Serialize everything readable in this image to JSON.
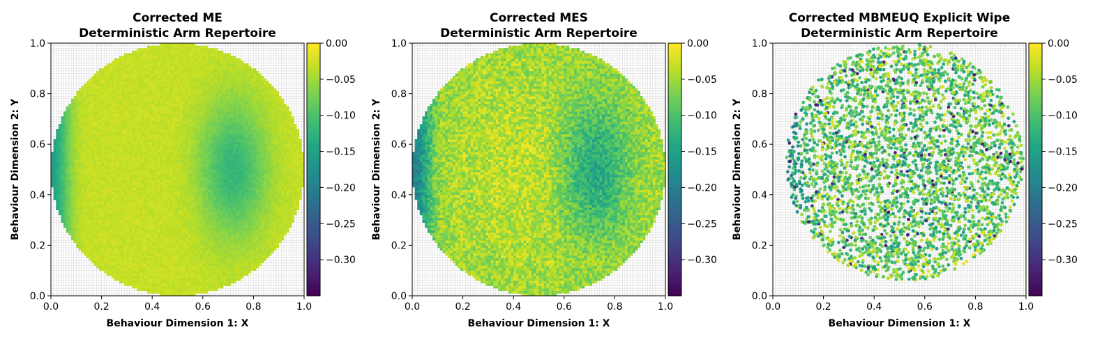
{
  "colormap": "viridis",
  "chart_data": [
    {
      "type": "heatmap",
      "title": "Corrected ME\nDeterministic Arm Repertoire",
      "xlabel": "Behaviour Dimension 1: X",
      "ylabel": "Behaviour Dimension 2: Y",
      "xlim": [
        0.0,
        1.0
      ],
      "ylim": [
        0.0,
        1.0
      ],
      "xticks": [
        "0.0",
        "0.2",
        "0.4",
        "0.6",
        "0.8",
        "1.0"
      ],
      "yticks": [
        "0.0",
        "0.2",
        "0.4",
        "0.6",
        "0.8",
        "1.0"
      ],
      "grid": true,
      "grid_cells": 100,
      "region": "disk",
      "center": [
        0.5,
        0.5
      ],
      "radius": 0.5,
      "fill": "dense grid cells",
      "value_range": [
        -0.35,
        0.0
      ],
      "colorbar_ticks": [
        "0.00",
        "−0.05",
        "−0.10",
        "−0.15",
        "−0.20",
        "−0.25",
        "−0.30"
      ],
      "colorbar_tick_values": [
        0.0,
        -0.05,
        -0.1,
        -0.15,
        -0.2,
        -0.25,
        -0.3
      ],
      "colorbar_range": [
        -0.35,
        0.0
      ],
      "typical_values": {
        "center": -0.03,
        "outer_ring": -0.03,
        "mid_right_band": -0.12,
        "left_edge": -0.15
      }
    },
    {
      "type": "heatmap",
      "title": "Corrected MES\nDeterministic Arm Repertoire",
      "xlabel": "Behaviour Dimension 1: X",
      "ylabel": "Behaviour Dimension 2: Y",
      "xlim": [
        0.0,
        1.0
      ],
      "ylim": [
        0.0,
        1.0
      ],
      "xticks": [
        "0.0",
        "0.2",
        "0.4",
        "0.6",
        "0.8",
        "1.0"
      ],
      "yticks": [
        "0.0",
        "0.2",
        "0.4",
        "0.6",
        "0.8",
        "1.0"
      ],
      "grid": true,
      "grid_cells": 100,
      "region": "disk",
      "center": [
        0.5,
        0.5
      ],
      "radius": 0.5,
      "fill": "dense grid cells",
      "value_range": [
        -0.35,
        0.0
      ],
      "colorbar_ticks": [
        "0.00",
        "−0.05",
        "−0.10",
        "−0.15",
        "−0.20",
        "−0.25",
        "−0.30"
      ],
      "colorbar_tick_values": [
        0.0,
        -0.05,
        -0.1,
        -0.15,
        -0.2,
        -0.25,
        -0.3
      ],
      "colorbar_range": [
        -0.35,
        0.0
      ],
      "typical_values": {
        "center": -0.03,
        "outer_ring": -0.05,
        "mid_right_band": -0.13,
        "left_edge": -0.2
      }
    },
    {
      "type": "heatmap",
      "title": "Corrected MBMEUQ Explicit Wipe\nDeterministic Arm Repertoire",
      "xlabel": "Behaviour Dimension 1: X",
      "ylabel": "Behaviour Dimension 2: Y",
      "xlim": [
        0.0,
        1.0
      ],
      "ylim": [
        0.0,
        1.0
      ],
      "xticks": [
        "0.0",
        "0.2",
        "0.4",
        "0.6",
        "0.8",
        "1.0"
      ],
      "yticks": [
        "0.0",
        "0.2",
        "0.4",
        "0.6",
        "0.8",
        "1.0"
      ],
      "grid": true,
      "grid_cells": 100,
      "region": "disk",
      "center": [
        0.52,
        0.53
      ],
      "radius": 0.47,
      "fill": "scattered points",
      "value_range": [
        -0.35,
        0.0
      ],
      "colorbar_ticks": [
        "0.00",
        "−0.05",
        "−0.10",
        "−0.15",
        "−0.20",
        "−0.25",
        "−0.30"
      ],
      "colorbar_tick_values": [
        0.0,
        -0.05,
        -0.1,
        -0.15,
        -0.2,
        -0.25,
        -0.3
      ],
      "colorbar_range": [
        -0.35,
        0.0
      ],
      "typical_values": {
        "center": -0.1,
        "outer_ring": -0.08,
        "mid_right_band": -0.1,
        "left_edge": -0.16
      }
    }
  ]
}
